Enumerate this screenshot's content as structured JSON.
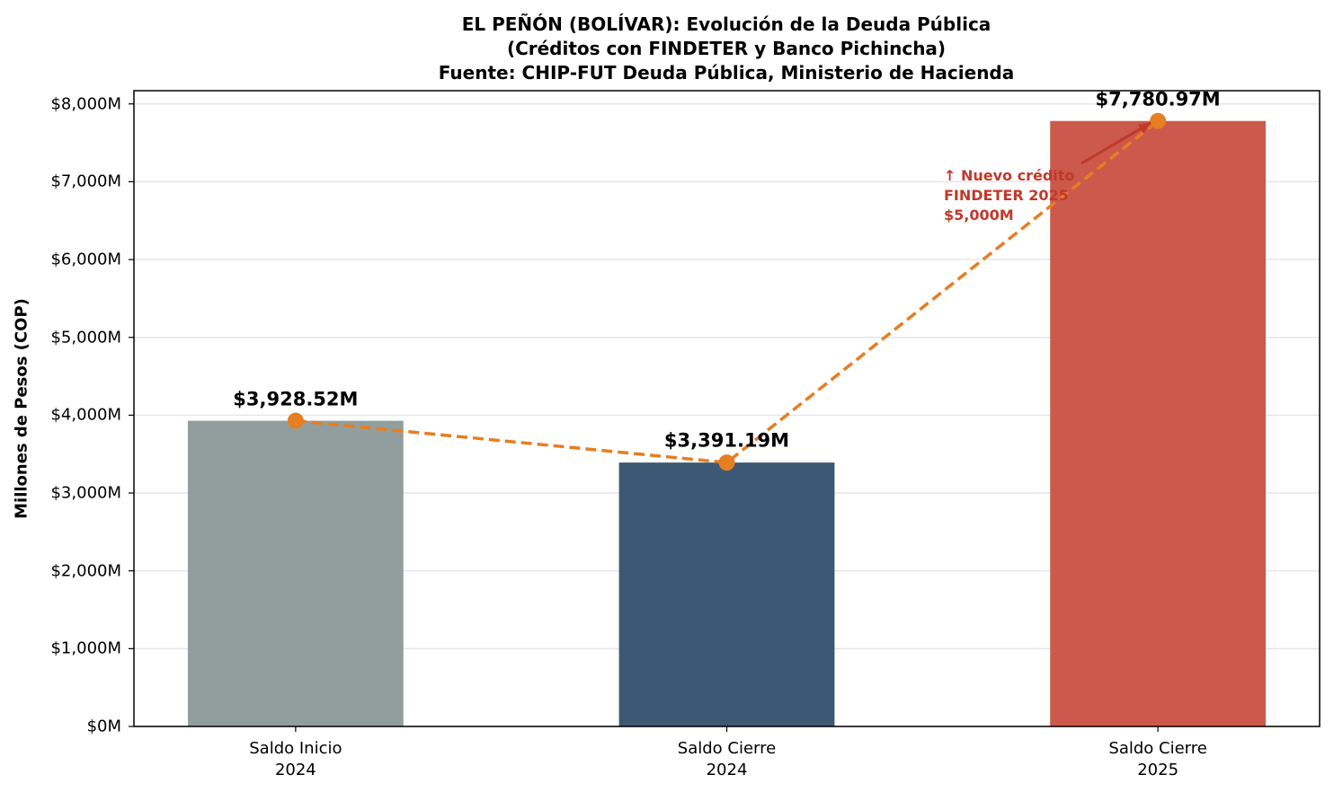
{
  "chart_data": {
    "type": "bar",
    "title": [
      "EL PEÑÓN (BOLÍVAR): Evolución de la Deuda Pública",
      "(Créditos con FINDETER y Banco Pichincha)",
      "Fuente: CHIP-FUT Deuda Pública, Ministerio de Hacienda"
    ],
    "y_label": "Millones de Pesos (COP)",
    "categories": [
      "Saldo Inicio\n2024",
      "Saldo Cierre\n2024",
      "Saldo Cierre\n2025"
    ],
    "values": [
      3928.52,
      3391.19,
      7780.97
    ],
    "value_labels": [
      "$3,928.52M",
      "$3,391.19M",
      "$7,780.97M"
    ],
    "colors": [
      "#929e9e",
      "#3d5875",
      "#cb594c"
    ],
    "line_color": "#e67e22",
    "ylim": [
      0,
      8170
    ],
    "yticks": [
      {
        "value": 0,
        "label": "$0M"
      },
      {
        "value": 1000,
        "label": "$1,000M"
      },
      {
        "value": 2000,
        "label": "$2,000M"
      },
      {
        "value": 3000,
        "label": "$3,000M"
      },
      {
        "value": 4000,
        "label": "$4,000M"
      },
      {
        "value": 5000,
        "label": "$5,000M"
      },
      {
        "value": 6000,
        "label": "$6,000M"
      },
      {
        "value": 7000,
        "label": "$7,000M"
      },
      {
        "value": 8000,
        "label": "$8,000M"
      }
    ],
    "grid": true,
    "annotation": {
      "text": "↑ Nuevo crédito\nFINDETER 2025\n$5,000M",
      "color": "#c0392b"
    }
  }
}
